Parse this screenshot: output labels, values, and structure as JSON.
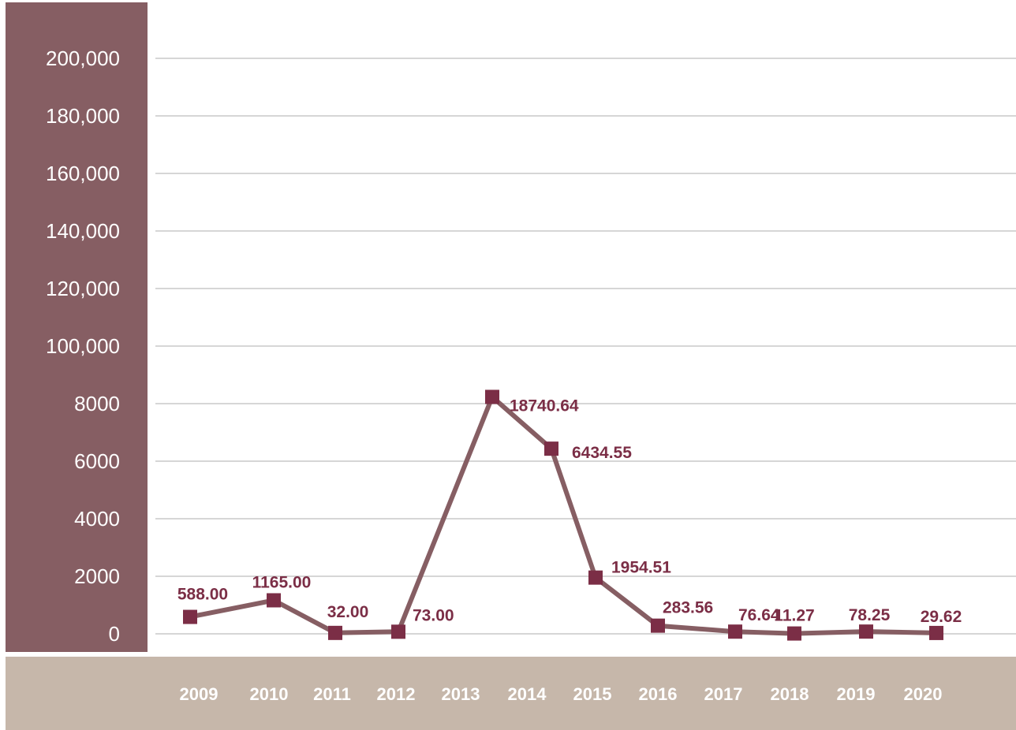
{
  "chart_data": {
    "type": "line",
    "title": "",
    "xlabel": "",
    "ylabel": "",
    "categories": [
      "2009",
      "2010",
      "2011",
      "2012",
      "2013",
      "2014",
      "2015",
      "2016",
      "2017",
      "2018",
      "2019",
      "2020"
    ],
    "y_ticks": [
      "0",
      "2000",
      "4000",
      "6000",
      "8000",
      "100,000",
      "120,000",
      "140,000",
      "160,000",
      "180,000",
      "200,000"
    ],
    "series": [
      {
        "values": [
          588.0,
          1165.0,
          32.0,
          73.0,
          18740.64,
          6434.55,
          1954.51,
          283.56,
          76.64,
          11.27,
          78.25,
          29.62
        ],
        "labels": [
          "588.00",
          "1165.00",
          "32.00",
          "73.00",
          "18740.64",
          "6434.55",
          "1954.51",
          "283.56",
          "76.64",
          "11.27",
          "78.25",
          "29.62"
        ]
      }
    ],
    "grid": true,
    "legend": "none"
  },
  "colors": {
    "axis_band": "#865e63",
    "category_band": "#c6b7aa",
    "line": "#865e63",
    "marker": "#7b2e46",
    "data_label": "#7b2e46"
  }
}
